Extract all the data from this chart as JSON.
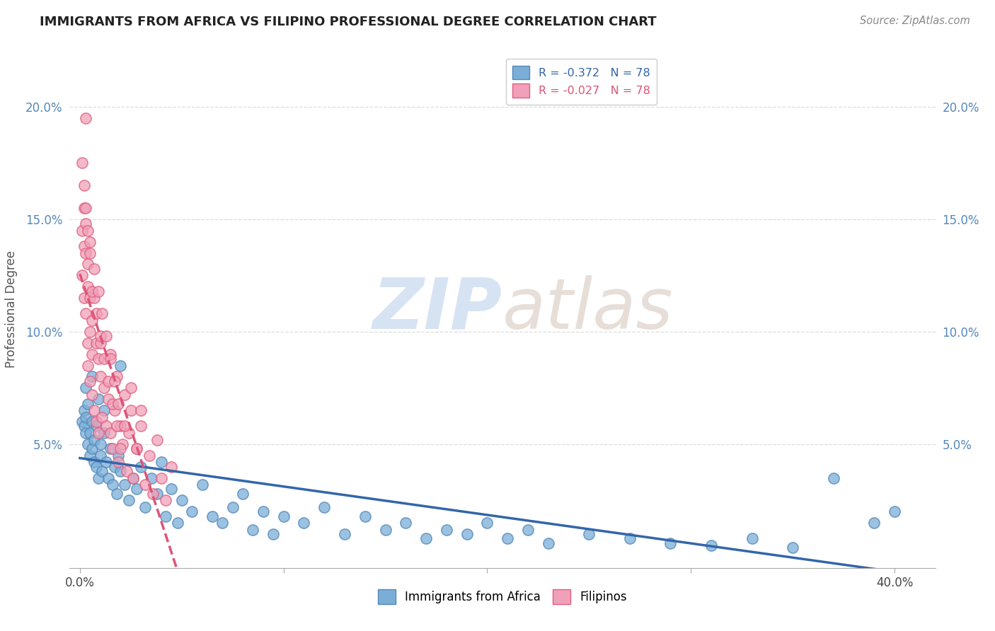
{
  "title": "IMMIGRANTS FROM AFRICA VS FILIPINO PROFESSIONAL DEGREE CORRELATION CHART",
  "source_text": "Source: ZipAtlas.com",
  "ylabel": "Professional Degree",
  "xlim": [
    -0.005,
    0.42
  ],
  "ylim": [
    -0.005,
    0.225
  ],
  "xticks": [
    0.0,
    0.1,
    0.2,
    0.3,
    0.4
  ],
  "xticklabels": [
    "0.0%",
    "",
    "",
    "",
    "40.0%"
  ],
  "yticks_left": [
    0.05,
    0.1,
    0.15,
    0.2
  ],
  "yticklabels_left": [
    "5.0%",
    "10.0%",
    "15.0%",
    "20.0%"
  ],
  "yticks_right": [
    0.05,
    0.1,
    0.15,
    0.2
  ],
  "yticklabels_right": [
    "5.0%",
    "10.0%",
    "15.0%",
    "20.0%"
  ],
  "africa_color": "#7aaed6",
  "africa_edge_color": "#5588bb",
  "filipino_color": "#f0a0b8",
  "filipino_edge_color": "#e06080",
  "legend_africa_label": "R = -0.372   N = 78",
  "legend_filipino_label": "R = -0.027   N = 78",
  "legend_africa_display": "Immigrants from Africa",
  "legend_filipino_display": "Filipinos",
  "africa_line_color": "#3366aa",
  "filipino_line_color": "#dd5577",
  "africa_line_style": "solid",
  "filipino_line_style": "dashed",
  "africa_x": [
    0.001,
    0.002,
    0.002,
    0.003,
    0.003,
    0.004,
    0.004,
    0.005,
    0.005,
    0.006,
    0.006,
    0.007,
    0.007,
    0.008,
    0.008,
    0.009,
    0.01,
    0.01,
    0.011,
    0.012,
    0.013,
    0.014,
    0.015,
    0.016,
    0.017,
    0.018,
    0.019,
    0.02,
    0.022,
    0.024,
    0.026,
    0.028,
    0.03,
    0.032,
    0.035,
    0.038,
    0.04,
    0.042,
    0.045,
    0.048,
    0.05,
    0.055,
    0.06,
    0.065,
    0.07,
    0.075,
    0.08,
    0.085,
    0.09,
    0.095,
    0.1,
    0.11,
    0.12,
    0.13,
    0.14,
    0.15,
    0.16,
    0.17,
    0.18,
    0.19,
    0.2,
    0.21,
    0.22,
    0.23,
    0.25,
    0.27,
    0.29,
    0.31,
    0.33,
    0.35,
    0.37,
    0.39,
    0.4,
    0.003,
    0.006,
    0.009,
    0.012,
    0.02
  ],
  "africa_y": [
    0.06,
    0.058,
    0.065,
    0.055,
    0.062,
    0.05,
    0.068,
    0.045,
    0.055,
    0.048,
    0.06,
    0.042,
    0.052,
    0.04,
    0.058,
    0.035,
    0.05,
    0.045,
    0.038,
    0.055,
    0.042,
    0.035,
    0.048,
    0.032,
    0.04,
    0.028,
    0.045,
    0.038,
    0.032,
    0.025,
    0.035,
    0.03,
    0.04,
    0.022,
    0.035,
    0.028,
    0.042,
    0.018,
    0.03,
    0.015,
    0.025,
    0.02,
    0.032,
    0.018,
    0.015,
    0.022,
    0.028,
    0.012,
    0.02,
    0.01,
    0.018,
    0.015,
    0.022,
    0.01,
    0.018,
    0.012,
    0.015,
    0.008,
    0.012,
    0.01,
    0.015,
    0.008,
    0.012,
    0.006,
    0.01,
    0.008,
    0.006,
    0.005,
    0.008,
    0.004,
    0.035,
    0.015,
    0.02,
    0.075,
    0.08,
    0.07,
    0.065,
    0.085
  ],
  "filipino_x": [
    0.001,
    0.001,
    0.002,
    0.002,
    0.003,
    0.003,
    0.003,
    0.004,
    0.004,
    0.004,
    0.005,
    0.005,
    0.005,
    0.006,
    0.006,
    0.006,
    0.007,
    0.007,
    0.008,
    0.008,
    0.009,
    0.009,
    0.01,
    0.01,
    0.011,
    0.012,
    0.013,
    0.014,
    0.015,
    0.015,
    0.016,
    0.017,
    0.018,
    0.019,
    0.02,
    0.021,
    0.022,
    0.023,
    0.024,
    0.025,
    0.026,
    0.028,
    0.03,
    0.032,
    0.034,
    0.036,
    0.038,
    0.04,
    0.042,
    0.045,
    0.002,
    0.003,
    0.004,
    0.005,
    0.006,
    0.007,
    0.008,
    0.009,
    0.01,
    0.011,
    0.012,
    0.013,
    0.014,
    0.015,
    0.016,
    0.017,
    0.018,
    0.019,
    0.02,
    0.022,
    0.025,
    0.028,
    0.03,
    0.001,
    0.002,
    0.003,
    0.004,
    0.005
  ],
  "filipino_y": [
    0.145,
    0.125,
    0.138,
    0.115,
    0.195,
    0.135,
    0.108,
    0.095,
    0.12,
    0.085,
    0.1,
    0.115,
    0.078,
    0.09,
    0.105,
    0.072,
    0.115,
    0.065,
    0.095,
    0.06,
    0.088,
    0.055,
    0.08,
    0.095,
    0.062,
    0.075,
    0.058,
    0.07,
    0.055,
    0.09,
    0.048,
    0.065,
    0.08,
    0.042,
    0.058,
    0.05,
    0.072,
    0.038,
    0.055,
    0.065,
    0.035,
    0.048,
    0.058,
    0.032,
    0.045,
    0.028,
    0.052,
    0.035,
    0.025,
    0.04,
    0.155,
    0.148,
    0.13,
    0.14,
    0.118,
    0.128,
    0.108,
    0.118,
    0.098,
    0.108,
    0.088,
    0.098,
    0.078,
    0.088,
    0.068,
    0.078,
    0.058,
    0.068,
    0.048,
    0.058,
    0.075,
    0.048,
    0.065,
    0.175,
    0.165,
    0.155,
    0.145,
    0.135
  ]
}
